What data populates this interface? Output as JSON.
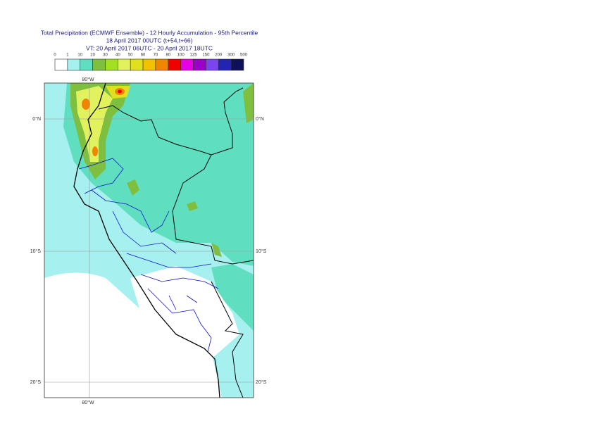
{
  "title_lines": [
    "Total Precipitation (ECMWF Ensemble) - 12 Hourly Accumulation - 95th Percentile",
    "18 April 2017 00UTC (t+54,t+66)",
    "VT: 20 April 2017 06UTC - 20 April 2017 18UTC"
  ],
  "legend": {
    "labels": [
      "0",
      "1",
      "10",
      "20",
      "30",
      "40",
      "50",
      "60",
      "70",
      "80",
      "100",
      "125",
      "150",
      "200",
      "300",
      "500"
    ],
    "colors": [
      "#ffffff",
      "#a6f0ef",
      "#5fdfc0",
      "#7fbf3f",
      "#a3e021",
      "#e2f25f",
      "#e0e01f",
      "#f2c200",
      "#f28500",
      "#f00000",
      "#e600e6",
      "#9a00c8",
      "#7a44ee",
      "#2424b4",
      "#10105a"
    ]
  },
  "map": {
    "longitude_label": "80°W",
    "latitude_labels": [
      "0°N",
      "10°S",
      "20°S"
    ]
  }
}
